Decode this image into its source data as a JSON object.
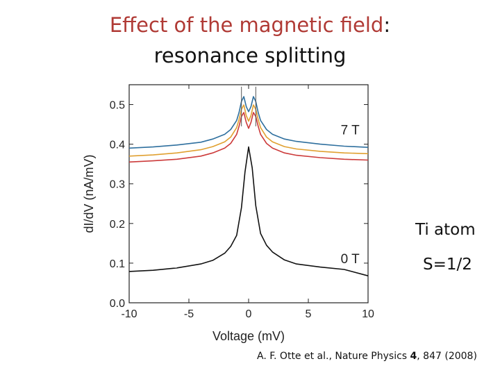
{
  "slide": {
    "title_accent": "Effect of the magnetic field",
    "title_colon": ":",
    "title_line2": "resonance splitting",
    "note_atom": "Ti atom",
    "note_spin": "S=1/2",
    "citation": {
      "authors_journal": "A. F. Otte et al., Nature Physics ",
      "volume": "4",
      "pages": ", 847 (",
      "year": "2008",
      "close": ")"
    }
  },
  "colors": {
    "title_accent": "#b03a35",
    "blue": "#2e6f9e",
    "orange": "#e0a030",
    "red": "#cc3a3a",
    "black": "#111111"
  },
  "chart_data": {
    "type": "line",
    "title": "",
    "xlabel": "Voltage (mV)",
    "ylabel": "dI/dV (nA/mV)",
    "xlim": [
      -10,
      10
    ],
    "ylim": [
      0.0,
      0.55
    ],
    "x_ticks": [
      -10,
      -5,
      0,
      5,
      10
    ],
    "y_ticks": [
      0.0,
      0.1,
      0.2,
      0.3,
      0.4,
      0.5
    ],
    "x_tick_labels": [
      "-10",
      "-5",
      "0",
      "5",
      "10"
    ],
    "y_tick_labels": [
      "0.0",
      "0.1",
      "0.2",
      "0.3",
      "0.4",
      "0.5"
    ],
    "series": [
      {
        "name": "7 T (blue)",
        "color": "#2e6f9e",
        "x": [
          -10,
          -8,
          -6,
          -4,
          -3,
          -2,
          -1.5,
          -1,
          -0.8,
          -0.6,
          -0.4,
          -0.2,
          0,
          0.2,
          0.4,
          0.6,
          0.8,
          1,
          1.5,
          2,
          3,
          4,
          6,
          8,
          10
        ],
        "y": [
          0.39,
          0.393,
          0.398,
          0.405,
          0.413,
          0.425,
          0.437,
          0.46,
          0.48,
          0.508,
          0.52,
          0.495,
          0.482,
          0.495,
          0.52,
          0.508,
          0.48,
          0.46,
          0.437,
          0.425,
          0.413,
          0.407,
          0.4,
          0.395,
          0.392
        ]
      },
      {
        "name": "7 T (orange)",
        "color": "#e0a030",
        "x": [
          -10,
          -8,
          -6,
          -4,
          -3,
          -2,
          -1.5,
          -1,
          -0.8,
          -0.6,
          -0.4,
          -0.2,
          0,
          0.2,
          0.4,
          0.6,
          0.8,
          1,
          1.5,
          2,
          3,
          4,
          6,
          8,
          10
        ],
        "y": [
          0.37,
          0.373,
          0.378,
          0.386,
          0.394,
          0.406,
          0.418,
          0.442,
          0.462,
          0.488,
          0.499,
          0.472,
          0.458,
          0.472,
          0.499,
          0.488,
          0.462,
          0.442,
          0.418,
          0.406,
          0.394,
          0.388,
          0.382,
          0.378,
          0.376
        ]
      },
      {
        "name": "7 T (red)",
        "color": "#cc3a3a",
        "x": [
          -10,
          -8,
          -6,
          -4,
          -3,
          -2,
          -1.5,
          -1,
          -0.8,
          -0.6,
          -0.4,
          -0.2,
          0,
          0.2,
          0.4,
          0.6,
          0.8,
          1,
          1.5,
          2,
          3,
          4,
          6,
          8,
          10
        ],
        "y": [
          0.355,
          0.358,
          0.362,
          0.37,
          0.378,
          0.39,
          0.402,
          0.425,
          0.445,
          0.47,
          0.48,
          0.455,
          0.44,
          0.455,
          0.48,
          0.47,
          0.445,
          0.425,
          0.402,
          0.39,
          0.378,
          0.372,
          0.366,
          0.362,
          0.36
        ]
      },
      {
        "name": "0 T",
        "color": "#111111",
        "x": [
          -10,
          -8,
          -6,
          -4,
          -3,
          -2,
          -1.5,
          -1,
          -0.6,
          -0.3,
          0,
          0.3,
          0.6,
          1,
          1.5,
          2,
          3,
          4,
          6,
          8,
          10
        ],
        "y": [
          0.079,
          0.082,
          0.088,
          0.098,
          0.107,
          0.125,
          0.142,
          0.17,
          0.24,
          0.33,
          0.393,
          0.34,
          0.245,
          0.175,
          0.145,
          0.128,
          0.108,
          0.098,
          0.09,
          0.084,
          0.068
        ]
      }
    ],
    "peak_markers": [
      -0.6,
      0.6
    ],
    "annotations": [
      {
        "text": "7 T",
        "x": 8.5,
        "y": 0.425
      },
      {
        "text": "0 T",
        "x": 8.5,
        "y": 0.1
      }
    ]
  }
}
